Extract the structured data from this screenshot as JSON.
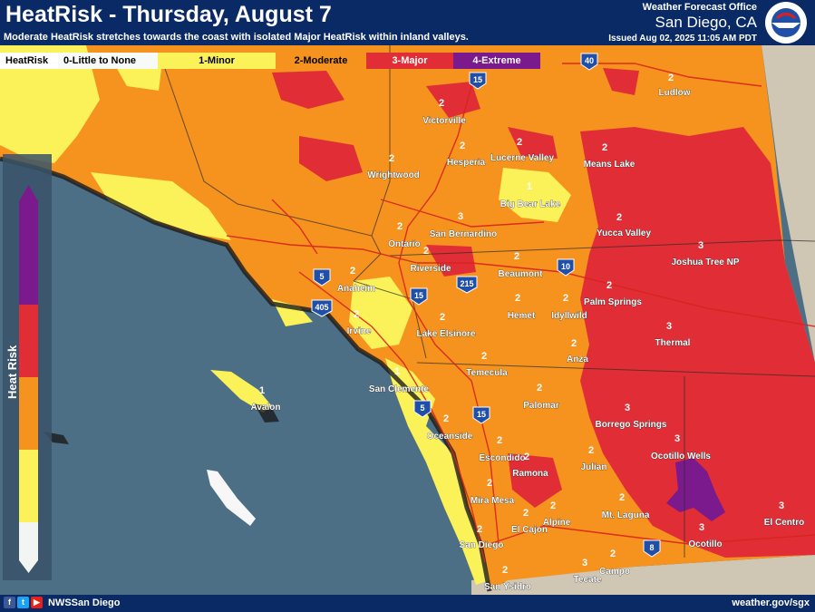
{
  "header": {
    "title": "HeatRisk - Thursday, August 7",
    "subtitle": "Moderate HeatRisk stretches towards the coast with isolated Major HeatRisk within inland valleys.",
    "office_label": "Weather Forecast Office",
    "office_city": "San Diego, CA",
    "issued": "Issued Aug 02, 2025 11:05 AM PDT"
  },
  "legend": [
    {
      "label": "HeatRisk",
      "color": "#ffffff",
      "text_color": "#000000"
    },
    {
      "label": "0-Little to None",
      "color": "#f7faf7",
      "text_color": "#000000"
    },
    {
      "label": "1-Minor",
      "color": "#fbf25a",
      "text_color": "#000000"
    },
    {
      "label": "2-Moderate",
      "color": "#f6921e",
      "text_color": "#000000"
    },
    {
      "label": "3-Major",
      "color": "#e12e36",
      "text_color": "#ffffff"
    },
    {
      "label": "4-Extreme",
      "color": "#7a1a8c",
      "text_color": "#ffffff"
    }
  ],
  "scale": {
    "title": "Heat Risk",
    "colors": [
      "#7a1a8c",
      "#e12e36",
      "#f6921e",
      "#fbf25a",
      "#f2f5f2"
    ]
  },
  "colors": {
    "ocean": "#4d6f86",
    "land_outside": "#cfc6b4",
    "minor": "#fbf25a",
    "moderate": "#f6921e",
    "major": "#e12e36",
    "extreme": "#7a1a8c",
    "header": "#0a2a66"
  },
  "interstates": [
    "40",
    "15",
    "10",
    "215",
    "5",
    "405",
    "15",
    "5",
    "15",
    "8"
  ],
  "locations": [
    {
      "name": "Ludlow",
      "value": "2"
    },
    {
      "name": "Victorville",
      "value": "2"
    },
    {
      "name": "Hesperia",
      "value": "2"
    },
    {
      "name": "Lucerne Valley",
      "value": "2"
    },
    {
      "name": "Means Lake",
      "value": "2"
    },
    {
      "name": "Wrightwood",
      "value": "2"
    },
    {
      "name": "Big Bear Lake",
      "value": "1"
    },
    {
      "name": "Yucca Valley",
      "value": "2"
    },
    {
      "name": "Ontario",
      "value": "2"
    },
    {
      "name": "San Bernardino",
      "value": "3"
    },
    {
      "name": "Joshua Tree NP",
      "value": "3"
    },
    {
      "name": "Riverside",
      "value": "2"
    },
    {
      "name": "Beaumont",
      "value": "2"
    },
    {
      "name": "Anaheim",
      "value": "2"
    },
    {
      "name": "Hemet",
      "value": "2"
    },
    {
      "name": "Idyllwild",
      "value": "2"
    },
    {
      "name": "Palm Springs",
      "value": "2"
    },
    {
      "name": "Irvine",
      "value": "2"
    },
    {
      "name": "Lake Elsinore",
      "value": "2"
    },
    {
      "name": "Thermal",
      "value": "3"
    },
    {
      "name": "Anza",
      "value": "2"
    },
    {
      "name": "Temecula",
      "value": "2"
    },
    {
      "name": "San Clemente",
      "value": "1"
    },
    {
      "name": "Avalon",
      "value": "1"
    },
    {
      "name": "Palomar",
      "value": "2"
    },
    {
      "name": "Borrego Springs",
      "value": "3"
    },
    {
      "name": "Oceanside",
      "value": "2"
    },
    {
      "name": "Escondido",
      "value": "2"
    },
    {
      "name": "Ramona",
      "value": "2"
    },
    {
      "name": "Julian",
      "value": "2"
    },
    {
      "name": "Ocotillo Wells",
      "value": "3"
    },
    {
      "name": "Mira Mesa",
      "value": "2"
    },
    {
      "name": "El Cajon",
      "value": "2"
    },
    {
      "name": "Alpine",
      "value": "2"
    },
    {
      "name": "Mt. Laguna",
      "value": "2"
    },
    {
      "name": "El Centro",
      "value": "3"
    },
    {
      "name": "Ocotillo",
      "value": "3"
    },
    {
      "name": "San Diego",
      "value": "2"
    },
    {
      "name": "Campo",
      "value": "2"
    },
    {
      "name": "Tecate",
      "value": "3"
    },
    {
      "name": "San Ysidro",
      "value": "2"
    }
  ],
  "footer": {
    "social_icons": [
      "facebook-icon",
      "twitter-icon",
      "youtube-icon"
    ],
    "handle": "NWSSan Diego",
    "url": "weather.gov/sgx"
  }
}
